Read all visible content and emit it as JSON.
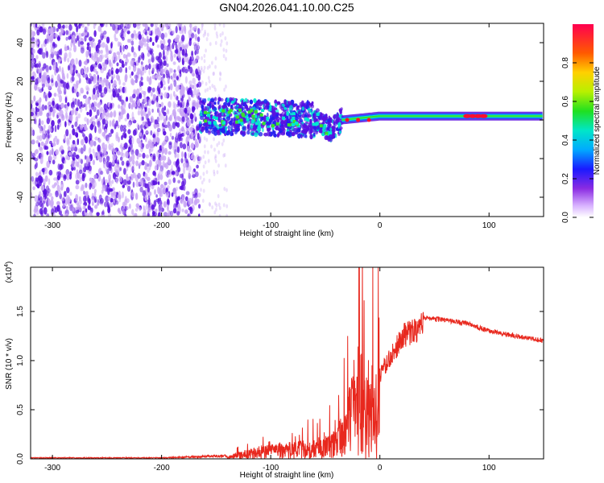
{
  "title": "GN04.2026.041.10.00.C25",
  "colors": {
    "axis": "#000000",
    "snr_line": "#e8281e",
    "purple_dark": "#5a10e0",
    "purple_light": "#c9a6f5",
    "cyan": "#00e6d2",
    "green": "#39e22a",
    "red": "#ff1030"
  },
  "chart_data": [
    {
      "type": "heatmap",
      "title": "GN04.2026.041.10.00.C25",
      "xlabel": "Height of straight line (km)",
      "ylabel": "Frequency (Hz)",
      "xlim": [
        -320,
        150
      ],
      "ylim": [
        -50,
        50
      ],
      "xticks": [
        -300,
        -200,
        -100,
        0,
        100
      ],
      "yticks": [
        -40,
        -20,
        0,
        20,
        40
      ],
      "noise_region_x": [
        -320,
        -165
      ],
      "signal_trace": [
        {
          "x": -160,
          "y": 2
        },
        {
          "x": -100,
          "y": 1
        },
        {
          "x": -60,
          "y": 0
        },
        {
          "x": -45,
          "y": -5
        },
        {
          "x": -35,
          "y": 0
        },
        {
          "x": 0,
          "y": 2
        },
        {
          "x": 50,
          "y": 2
        },
        {
          "x": 90,
          "y": 2
        },
        {
          "x": 150,
          "y": 2
        }
      ],
      "colorbar": {
        "label": "Normalized spectral amplitude",
        "range": [
          0,
          1
        ],
        "ticks": [
          "0.0",
          "0.2",
          "0.4",
          "0.6",
          "0.8"
        ]
      }
    },
    {
      "type": "line",
      "xlabel": "Height of straight line (km)",
      "ylabel": "SNR (10 * v/v)",
      "scale_label": "(x10",
      "scale_exp": "4",
      "scale_close": ")",
      "xlim": [
        -320,
        150
      ],
      "ylim": [
        0,
        1.95
      ],
      "xticks": [
        -300,
        -200,
        -100,
        0,
        100
      ],
      "yticks": [
        "0.0",
        "0.5",
        "1.0",
        "1.5"
      ],
      "series": [
        {
          "name": "SNR",
          "envelope": [
            {
              "x": -320,
              "y": 0.01
            },
            {
              "x": -200,
              "y": 0.01
            },
            {
              "x": -140,
              "y": 0.03
            },
            {
              "x": -120,
              "y": 0.1
            },
            {
              "x": -100,
              "y": 0.15
            },
            {
              "x": -60,
              "y": 0.2
            },
            {
              "x": -40,
              "y": 0.3
            },
            {
              "x": -30,
              "y": 0.6
            },
            {
              "x": -22,
              "y": 1.2
            },
            {
              "x": -18,
              "y": 1.1
            },
            {
              "x": 0,
              "y": 0.9
            },
            {
              "x": 20,
              "y": 1.3
            },
            {
              "x": 40,
              "y": 1.44
            },
            {
              "x": 80,
              "y": 1.38
            },
            {
              "x": 100,
              "y": 1.3
            },
            {
              "x": 130,
              "y": 1.24
            },
            {
              "x": 150,
              "y": 1.2
            }
          ],
          "peak": {
            "x": -19,
            "y": 1.95
          }
        }
      ]
    }
  ]
}
